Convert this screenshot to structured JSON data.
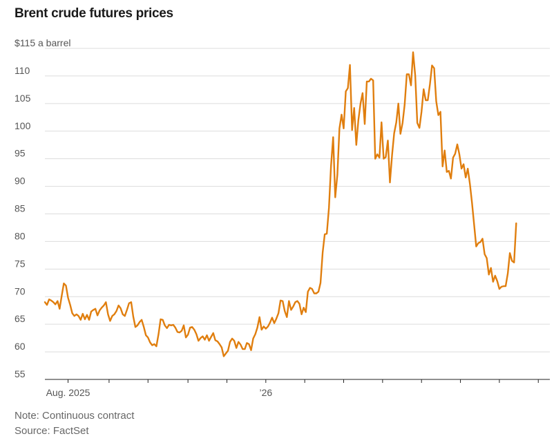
{
  "chart_data": {
    "type": "line",
    "title": "Brent crude futures prices",
    "ylabel": "$115 a barrel",
    "unit_suffix": " a barrel",
    "yticks": [
      55,
      60,
      65,
      70,
      75,
      80,
      85,
      90,
      95,
      100,
      105,
      110,
      115
    ],
    "ytick_labels": [
      "55",
      "60",
      "65",
      "70",
      "75",
      "80",
      "85",
      "90",
      "95",
      "100",
      "105",
      "110",
      "$115 a barrel"
    ],
    "ylim": [
      55,
      115
    ],
    "xlim": [
      0,
      240
    ],
    "x_tick_marks": [
      11,
      30.5,
      49,
      68,
      86.5,
      105,
      123.5,
      142,
      160.5,
      179,
      197.5,
      216,
      234.5
    ],
    "x_tick_labels": [
      {
        "x": 11,
        "label": "Aug. 2025"
      },
      {
        "x": 105,
        "label": "’26"
      }
    ],
    "grid": true,
    "color": "#e07e0e",
    "series": [
      {
        "values": [
          69.0,
          68.5,
          69.5,
          69.3,
          69.0,
          68.6,
          69.2,
          67.8,
          70.2,
          72.4,
          72.0,
          69.8,
          68.5,
          67.0,
          66.5,
          66.8,
          66.5,
          65.8,
          66.9,
          65.9,
          66.7,
          65.8,
          67.3,
          67.6,
          67.8,
          66.6,
          67.5,
          68.0,
          68.4,
          69.0,
          66.8,
          65.6,
          66.5,
          66.8,
          67.4,
          68.4,
          67.9,
          66.8,
          66.5,
          67.6,
          68.8,
          69.0,
          66.4,
          64.5,
          64.8,
          65.4,
          65.8,
          64.5,
          63.0,
          62.6,
          61.7,
          61.2,
          61.4,
          61.0,
          63.2,
          65.9,
          65.8,
          64.8,
          64.3,
          64.9,
          64.8,
          64.9,
          64.4,
          63.6,
          63.5,
          63.8,
          64.8,
          62.6,
          63.1,
          64.4,
          64.5,
          64.0,
          63.2,
          62.0,
          62.5,
          62.8,
          62.2,
          63.0,
          62.0,
          62.7,
          63.4,
          62.1,
          61.9,
          61.4,
          60.8,
          59.2,
          59.7,
          60.2,
          61.8,
          62.4,
          62.0,
          60.7,
          61.8,
          61.3,
          60.5,
          60.5,
          61.6,
          61.4,
          60.3,
          62.4,
          63.2,
          64.4,
          66.3,
          64.0,
          64.6,
          64.2,
          64.6,
          65.3,
          66.2,
          65.2,
          66.0,
          67.0,
          69.3,
          69.2,
          67.4,
          66.3,
          69.2,
          67.6,
          68.2,
          69.0,
          69.2,
          68.7,
          66.8,
          68.0,
          67.2,
          70.9,
          71.6,
          71.4,
          70.6,
          70.6,
          70.9,
          72.5,
          78.0,
          81.3,
          81.4,
          86.1,
          93.7,
          98.9,
          88.0,
          92.1,
          100.5,
          103.0,
          100.5,
          107.2,
          107.8,
          112.0,
          100.2,
          104.2,
          97.5,
          102.0,
          105.0,
          106.9,
          101.3,
          109.0,
          109.0,
          109.5,
          109.2,
          95.0,
          95.8,
          95.2,
          101.6,
          95.0,
          95.3,
          98.3,
          90.7,
          95.7,
          99.6,
          101.6,
          105.0,
          99.5,
          101.5,
          104.8,
          110.3,
          110.3,
          108.3,
          114.3,
          110.1,
          101.5,
          100.6,
          103.5,
          107.6,
          105.6,
          105.6,
          108.5,
          111.9,
          111.4,
          105.4,
          102.9,
          103.5,
          93.6,
          96.5,
          92.6,
          92.8,
          91.4,
          95.2,
          95.9,
          97.6,
          95.8,
          93.2,
          94.0,
          91.6,
          93.2,
          90.4,
          87.0,
          83.0,
          79.1,
          79.7,
          79.9,
          80.5,
          77.7,
          77.0,
          74.0,
          75.2,
          72.7,
          73.8,
          72.8,
          71.4,
          71.8,
          71.9,
          71.9,
          74.2,
          77.9,
          76.5,
          76.2,
          83.3
        ]
      }
    ],
    "note": "Note: Continuous contract",
    "source": "Source: FactSet"
  }
}
